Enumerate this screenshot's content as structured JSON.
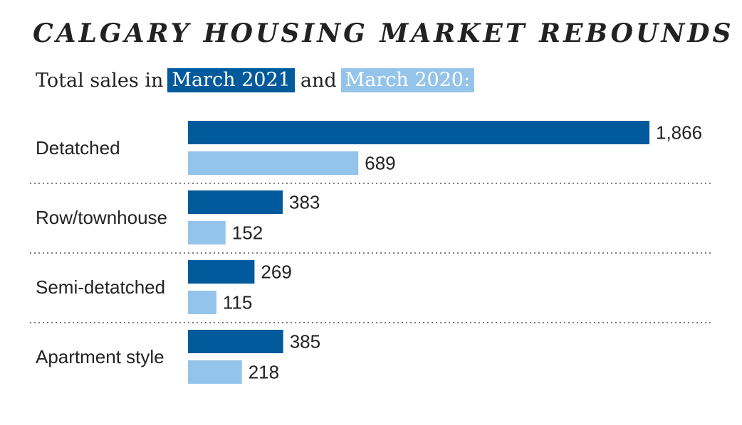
{
  "chart_data": {
    "type": "bar",
    "orientation": "horizontal",
    "title": "CALGARY HOUSING MARKET REBOUNDS",
    "subtitle": {
      "prefix": "Total sales in",
      "connector": "and"
    },
    "categories": [
      "Detatched",
      "Row/townhouse",
      "Semi-detatched",
      "Apartment style"
    ],
    "series": [
      {
        "name": "March 2021",
        "color": "#005a9c",
        "values": [
          1866,
          383,
          269,
          385
        ],
        "labels": [
          "1,866",
          "383",
          "269",
          "385"
        ]
      },
      {
        "name": "March 2020:",
        "color": "#95c4ea",
        "values": [
          689,
          152,
          115,
          218
        ],
        "labels": [
          "689",
          "152",
          "115",
          "218"
        ]
      }
    ],
    "xlim": [
      0,
      1866
    ],
    "grid": false,
    "separators": "dotted"
  }
}
